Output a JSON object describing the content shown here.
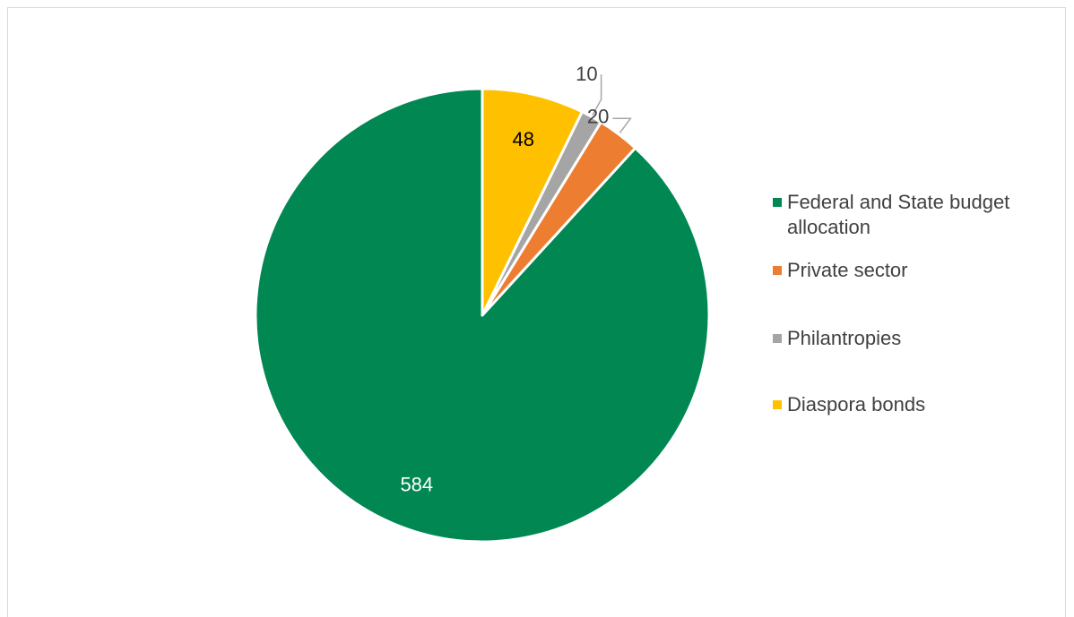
{
  "chart_data": {
    "type": "pie",
    "title": "",
    "categories": [
      "Federal and State budget allocation",
      "Private sector",
      "Philantropies",
      "Diaspora bonds"
    ],
    "values": [
      584,
      20,
      10,
      48
    ],
    "data_labels": [
      "584",
      "20",
      "10",
      "48"
    ],
    "colors": [
      "#008752",
      "#ED7D31",
      "#A5A5A5",
      "#FFC000"
    ],
    "label_colors": [
      "#ffffff",
      "#404040",
      "#404040",
      "#000000"
    ],
    "start_angle_deg": 0,
    "direction": "counterclockwise",
    "legend_position": "right",
    "grid": false
  },
  "legend": {
    "items": [
      {
        "label": "Federal and State budget allocation",
        "color": "#008752"
      },
      {
        "label": "Private sector",
        "color": "#ED7D31"
      },
      {
        "label": "Philantropies",
        "color": "#A5A5A5"
      },
      {
        "label": "Diaspora bonds",
        "color": "#FFC000"
      }
    ]
  }
}
